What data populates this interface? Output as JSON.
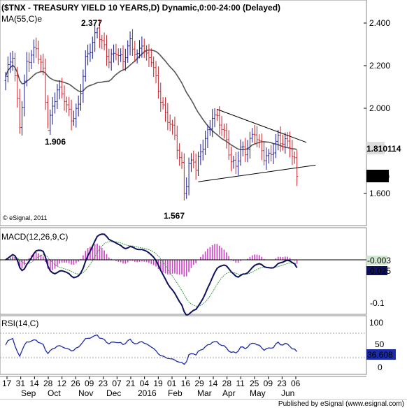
{
  "chart_data": {
    "type": "candlestick",
    "title": "($TNX - TREASURY YIELD 10 YEARS,D) Dynamic,0:00-24:00 (Delayed)",
    "ma_label": "MA(55,C)e",
    "watermark": "© eSignal, 2011",
    "publisher": "Published by eSignal (www.esignal.com)",
    "ylim": [
      1.5,
      2.5
    ],
    "yticks": [
      "2.400",
      "2.200",
      "2.000",
      "1.600"
    ],
    "annotations": [
      "2.377",
      "1.906",
      "1.567"
    ],
    "price_tags": [
      "1.810114",
      "1.680"
    ],
    "x_ticks": [
      "17",
      "31",
      "14",
      "28",
      "12",
      "26",
      "09",
      "23",
      "07",
      "21",
      "04",
      "19",
      "01",
      "16",
      "29",
      "14",
      "28",
      "11",
      "25",
      "09",
      "23",
      "06"
    ],
    "months": [
      "Sep",
      "Oct",
      "Nov",
      "Dec",
      "2016",
      "Feb",
      "Mar",
      "Apr",
      "May",
      "Jun"
    ],
    "price_anchors": [
      [
        0,
        2.15
      ],
      [
        3,
        2.24
      ],
      [
        6,
        1.93
      ],
      [
        9,
        2.22
      ],
      [
        13,
        2.27
      ],
      [
        16,
        2.18
      ],
      [
        18,
        1.92
      ],
      [
        22,
        2.08
      ],
      [
        25,
        2.05
      ],
      [
        28,
        1.96
      ],
      [
        31,
        2.0
      ],
      [
        34,
        2.22
      ],
      [
        37,
        2.32
      ],
      [
        39,
        2.377
      ],
      [
        41,
        2.3
      ],
      [
        44,
        2.22
      ],
      [
        47,
        2.28
      ],
      [
        50,
        2.22
      ],
      [
        53,
        2.3
      ],
      [
        56,
        2.25
      ],
      [
        58,
        2.32
      ],
      [
        60,
        2.24
      ],
      [
        62,
        2.22
      ],
      [
        64,
        2.13
      ],
      [
        66,
        2.05
      ],
      [
        68,
        1.98
      ],
      [
        70,
        1.93
      ],
      [
        72,
        1.86
      ],
      [
        74,
        1.76
      ],
      [
        75,
        1.73
      ],
      [
        76,
        1.567
      ],
      [
        77,
        1.66
      ],
      [
        78,
        1.74
      ],
      [
        80,
        1.76
      ],
      [
        81,
        1.71
      ],
      [
        83,
        1.78
      ],
      [
        85,
        1.86
      ],
      [
        87,
        1.92
      ],
      [
        88,
        1.98
      ],
      [
        90,
        1.95
      ],
      [
        92,
        1.9
      ],
      [
        94,
        1.84
      ],
      [
        96,
        1.76
      ],
      [
        98,
        1.74
      ],
      [
        100,
        1.81
      ],
      [
        102,
        1.78
      ],
      [
        104,
        1.84
      ],
      [
        106,
        1.9
      ],
      [
        108,
        1.84
      ],
      [
        110,
        1.77
      ],
      [
        112,
        1.76
      ],
      [
        114,
        1.8
      ],
      [
        116,
        1.87
      ],
      [
        118,
        1.85
      ],
      [
        120,
        1.84
      ],
      [
        121,
        1.82
      ],
      [
        122,
        1.76
      ],
      [
        123,
        1.74
      ],
      [
        124,
        1.68
      ]
    ],
    "triangle": {
      "upper": [
        [
          1.995,
          90
        ],
        [
          1.84,
          128
        ]
      ],
      "lower": [
        [
          1.655,
          82
        ],
        [
          1.73,
          129
        ]
      ]
    },
    "macd": {
      "label": "MACD(12,26,9,C)",
      "ylim": [
        -0.12,
        0.09
      ],
      "yticks": [
        "-0.1"
      ],
      "values": [
        "-0.003",
        "-0.025"
      ]
    },
    "rsi": {
      "label": "RSI(14,C)",
      "ylim": [
        0,
        100
      ],
      "yticks": [
        "100",
        "50",
        "0"
      ],
      "value": "36.608",
      "levels": [
        30,
        70
      ]
    },
    "colors": {
      "bull": "#1a1a9a",
      "bear": "#d0202a",
      "ma": "#555555",
      "macd": "#101060",
      "signal": "#40a040",
      "hist": "#d040c8",
      "rsi": "#1a2aa8"
    }
  }
}
